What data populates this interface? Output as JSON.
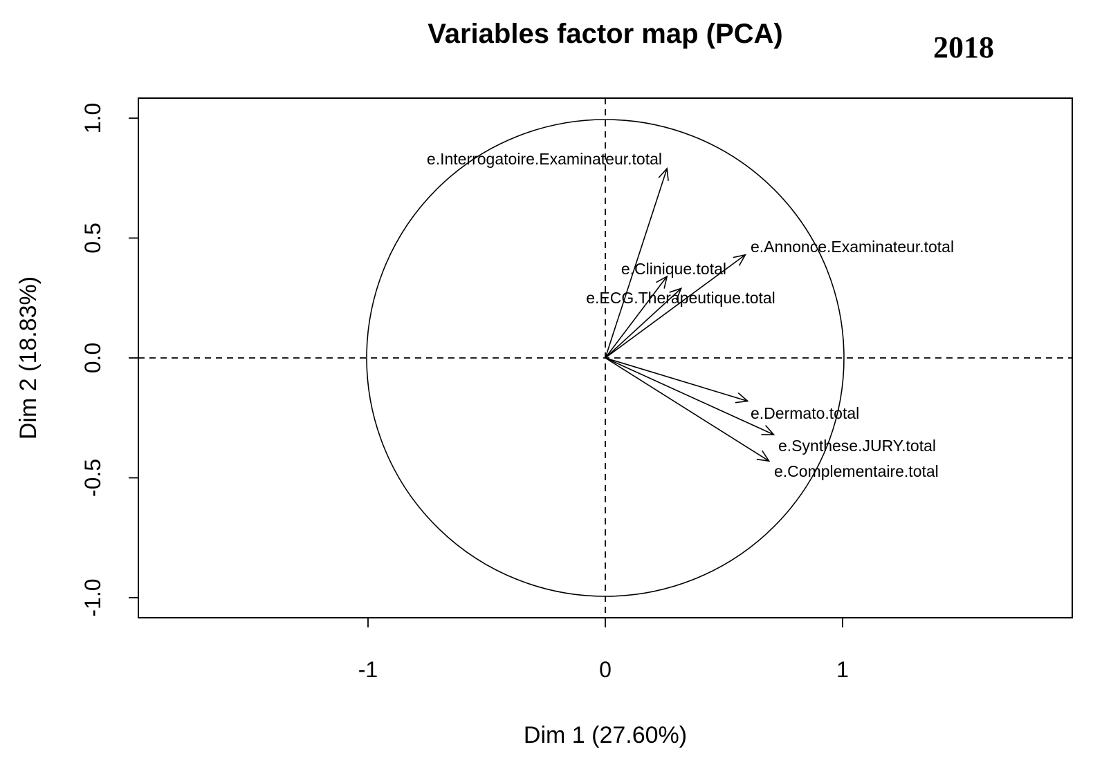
{
  "chart_data": {
    "type": "scatter",
    "title": "Variables factor map (PCA)",
    "year_label": "2018",
    "xlabel": "Dim 1 (27.60%)",
    "ylabel": "Dim 2 (18.83%)",
    "xlim": [
      -1.97,
      1.97
    ],
    "ylim": [
      -1.08,
      1.08
    ],
    "x_ticks": [
      -1,
      0,
      1
    ],
    "x_tick_labels": [
      "-1",
      "0",
      "1"
    ],
    "y_ticks": [
      -1.0,
      -0.5,
      0.0,
      0.5,
      1.0
    ],
    "y_tick_labels": [
      "-1.0",
      "-0.5",
      "0.0",
      "0.5",
      "1.0"
    ],
    "unit_circle": true,
    "reference_lines": [
      "x=0",
      "y=0"
    ],
    "grid": false,
    "arrow_color": "#000000",
    "series": [
      {
        "name": "e.Interrogatoire.Examinateur.total",
        "x": 0.26,
        "y": 0.79
      },
      {
        "name": "e.Annonce.Examinateur.total",
        "x": 0.59,
        "y": 0.43
      },
      {
        "name": "e.Clinique.total",
        "x": 0.26,
        "y": 0.34
      },
      {
        "name": "e.ECG.Therapeutique.total",
        "x": 0.32,
        "y": 0.29
      },
      {
        "name": "e.Dermato.total",
        "x": 0.6,
        "y": -0.18
      },
      {
        "name": "e.Synthese.JURY.total",
        "x": 0.71,
        "y": -0.32
      },
      {
        "name": "e.Complementaire.total",
        "x": 0.69,
        "y": -0.43
      }
    ]
  }
}
